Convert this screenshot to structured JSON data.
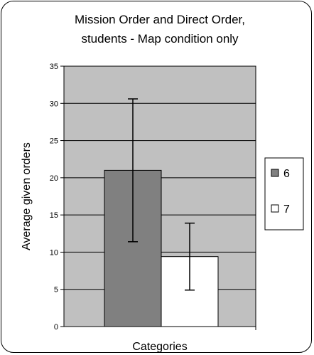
{
  "chart_data": {
    "type": "bar",
    "title": "Mission Order and Direct Order,",
    "subtitle": "students - Map condition only",
    "xlabel": "Categories",
    "ylabel": "Average given orders",
    "ylim": [
      0,
      35
    ],
    "yticks": [
      0,
      5,
      10,
      15,
      20,
      25,
      30,
      35
    ],
    "grid": true,
    "legend_position": "right",
    "series": [
      {
        "name": "6",
        "value": 21.0,
        "error_low": 11.4,
        "error_high": 30.6,
        "color": "#808080"
      },
      {
        "name": "7",
        "value": 9.4,
        "error_low": 4.9,
        "error_high": 13.9,
        "color": "#ffffff"
      }
    ],
    "plot_background": "#c0c0c0"
  }
}
